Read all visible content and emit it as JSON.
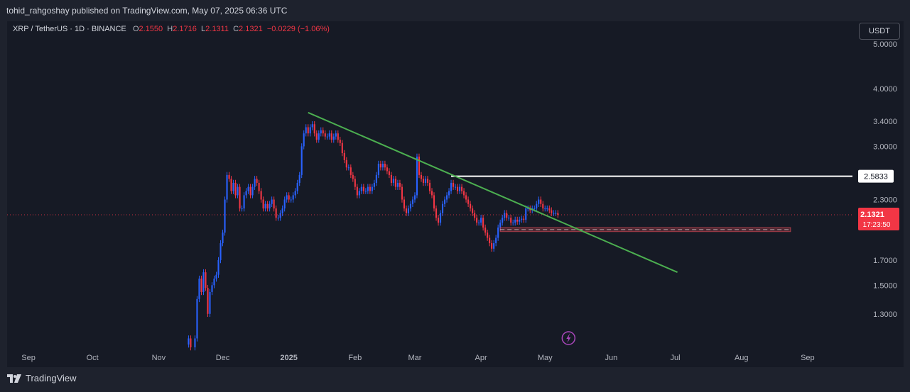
{
  "header": {
    "publisher": "tohid_rahgoshay published on TradingView.com, May 07, 2025 06:36 UTC"
  },
  "legend": {
    "symbol": "XRP / TetherUS · 1D · BINANCE",
    "o_label": "O",
    "o_value": "2.1550",
    "h_label": "H",
    "h_value": "2.1716",
    "l_label": "L",
    "l_value": "2.1311",
    "c_label": "C",
    "c_value": "2.1321",
    "change": "−0.0229 (−1.06%)"
  },
  "toolbar": {
    "currency": "USDT"
  },
  "footer": {
    "brand": "TradingView"
  },
  "colors": {
    "up": "#2962ff",
    "down": "#f23645",
    "trendline": "#4caf50",
    "level": "#ffffff",
    "zone": "#f7525f"
  },
  "chart_data": {
    "type": "candlestick",
    "symbol": "XRP / TetherUS",
    "interval": "1D",
    "exchange": "BINANCE",
    "y_scale": "log",
    "ylim": [
      1.1,
      5.6
    ],
    "xlim": [
      "2024-08-22",
      "2025-09-22"
    ],
    "yticks": [
      "5.0000",
      "4.0000",
      "3.4000",
      "3.0000",
      "2.3000",
      "1.7000",
      "1.5000",
      "1.3000"
    ],
    "xticks": [
      {
        "label": "Sep",
        "date": "2024-09-01"
      },
      {
        "label": "Oct",
        "date": "2024-10-01"
      },
      {
        "label": "Nov",
        "date": "2024-11-01"
      },
      {
        "label": "Dec",
        "date": "2024-12-01"
      },
      {
        "label": "2025",
        "date": "2025-01-01"
      },
      {
        "label": "Feb",
        "date": "2025-02-01"
      },
      {
        "label": "Mar",
        "date": "2025-03-01"
      },
      {
        "label": "Apr",
        "date": "2025-04-01"
      },
      {
        "label": "May",
        "date": "2025-05-01"
      },
      {
        "label": "Jun",
        "date": "2025-06-01"
      },
      {
        "label": "Jul",
        "date": "2025-07-01"
      },
      {
        "label": "Aug",
        "date": "2025-08-01"
      },
      {
        "label": "Sep",
        "date": "2025-09-01"
      }
    ],
    "last_price": {
      "value": 2.1321,
      "label": "2.1321",
      "countdown": "17:23:50"
    },
    "horizontal_level": {
      "value": 2.5833,
      "label": "2.5833",
      "start": "2025-03-18",
      "end": "2025-08-24"
    },
    "support_zone": {
      "top": 2.0,
      "bottom": 1.96,
      "start": "2025-04-10",
      "end": "2025-08-24"
    },
    "trendline": {
      "start": {
        "date": "2025-01-10",
        "value": 3.55
      },
      "end": {
        "date": "2025-07-02",
        "value": 1.6
      }
    },
    "closes": [
      [
        "2024-11-15",
        1.15
      ],
      [
        "2024-11-16",
        1.1
      ],
      [
        "2024-11-18",
        1.15
      ],
      [
        "2024-11-19",
        1.4
      ],
      [
        "2024-11-20",
        1.55
      ],
      [
        "2024-11-21",
        1.45
      ],
      [
        "2024-11-22",
        1.6
      ],
      [
        "2024-11-23",
        1.48
      ],
      [
        "2024-11-24",
        1.3
      ],
      [
        "2024-11-25",
        1.45
      ],
      [
        "2024-11-26",
        1.5
      ],
      [
        "2024-11-27",
        1.55
      ],
      [
        "2024-11-28",
        1.58
      ],
      [
        "2024-11-29",
        1.7
      ],
      [
        "2024-11-30",
        1.85
      ],
      [
        "2024-12-01",
        1.95
      ],
      [
        "2024-12-02",
        2.3
      ],
      [
        "2024-12-03",
        2.6
      ],
      [
        "2024-12-04",
        2.55
      ],
      [
        "2024-12-05",
        2.4
      ],
      [
        "2024-12-06",
        2.5
      ],
      [
        "2024-12-07",
        2.35
      ],
      [
        "2024-12-08",
        2.45
      ],
      [
        "2024-12-09",
        2.2
      ],
      [
        "2024-12-10",
        2.2
      ],
      [
        "2024-12-11",
        2.35
      ],
      [
        "2024-12-12",
        2.4
      ],
      [
        "2024-12-13",
        2.45
      ],
      [
        "2024-12-14",
        2.35
      ],
      [
        "2024-12-15",
        2.45
      ],
      [
        "2024-12-16",
        2.55
      ],
      [
        "2024-12-17",
        2.5
      ],
      [
        "2024-12-18",
        2.4
      ],
      [
        "2024-12-19",
        2.3
      ],
      [
        "2024-12-20",
        2.2
      ],
      [
        "2024-12-21",
        2.25
      ],
      [
        "2024-12-22",
        2.2
      ],
      [
        "2024-12-23",
        2.25
      ],
      [
        "2024-12-24",
        2.3
      ],
      [
        "2024-12-25",
        2.2
      ],
      [
        "2024-12-26",
        2.1
      ],
      [
        "2024-12-27",
        2.1
      ],
      [
        "2024-12-28",
        2.15
      ],
      [
        "2024-12-29",
        2.2
      ],
      [
        "2024-12-30",
        2.3
      ],
      [
        "2024-12-31",
        2.35
      ],
      [
        "2025-01-01",
        2.3
      ],
      [
        "2025-01-02",
        2.3
      ],
      [
        "2025-01-03",
        2.35
      ],
      [
        "2025-01-04",
        2.4
      ],
      [
        "2025-01-05",
        2.5
      ],
      [
        "2025-01-06",
        2.6
      ],
      [
        "2025-01-07",
        3.0
      ],
      [
        "2025-01-08",
        3.2
      ],
      [
        "2025-01-09",
        3.3
      ],
      [
        "2025-01-10",
        3.2
      ],
      [
        "2025-01-11",
        3.3
      ],
      [
        "2025-01-12",
        3.35
      ],
      [
        "2025-01-13",
        3.2
      ],
      [
        "2025-01-14",
        3.1
      ],
      [
        "2025-01-15",
        3.2
      ],
      [
        "2025-01-16",
        3.25
      ],
      [
        "2025-01-17",
        3.2
      ],
      [
        "2025-01-18",
        3.15
      ],
      [
        "2025-01-19",
        3.15
      ],
      [
        "2025-01-20",
        3.2
      ],
      [
        "2025-01-21",
        3.1
      ],
      [
        "2025-01-22",
        3.15
      ],
      [
        "2025-01-23",
        3.2
      ],
      [
        "2025-01-24",
        3.1
      ],
      [
        "2025-01-25",
        3.05
      ],
      [
        "2025-01-26",
        2.9
      ],
      [
        "2025-01-27",
        2.8
      ],
      [
        "2025-01-28",
        2.7
      ],
      [
        "2025-01-29",
        2.7
      ],
      [
        "2025-01-30",
        2.6
      ],
      [
        "2025-01-31",
        2.55
      ],
      [
        "2025-02-01",
        2.45
      ],
      [
        "2025-02-02",
        2.35
      ],
      [
        "2025-02-03",
        2.4
      ],
      [
        "2025-02-04",
        2.45
      ],
      [
        "2025-02-05",
        2.4
      ],
      [
        "2025-02-06",
        2.4
      ],
      [
        "2025-02-07",
        2.45
      ],
      [
        "2025-02-08",
        2.4
      ],
      [
        "2025-02-09",
        2.45
      ],
      [
        "2025-02-10",
        2.5
      ],
      [
        "2025-02-11",
        2.6
      ],
      [
        "2025-02-12",
        2.75
      ],
      [
        "2025-02-13",
        2.7
      ],
      [
        "2025-02-14",
        2.75
      ],
      [
        "2025-02-15",
        2.7
      ],
      [
        "2025-02-16",
        2.65
      ],
      [
        "2025-02-17",
        2.6
      ],
      [
        "2025-02-18",
        2.5
      ],
      [
        "2025-02-19",
        2.55
      ],
      [
        "2025-02-20",
        2.45
      ],
      [
        "2025-02-21",
        2.5
      ],
      [
        "2025-02-22",
        2.45
      ],
      [
        "2025-02-23",
        2.3
      ],
      [
        "2025-02-24",
        2.2
      ],
      [
        "2025-02-25",
        2.15
      ],
      [
        "2025-02-26",
        2.2
      ],
      [
        "2025-02-27",
        2.25
      ],
      [
        "2025-02-28",
        2.3
      ],
      [
        "2025-03-01",
        2.35
      ],
      [
        "2025-03-02",
        2.85
      ],
      [
        "2025-03-03",
        2.6
      ],
      [
        "2025-03-04",
        2.55
      ],
      [
        "2025-03-05",
        2.5
      ],
      [
        "2025-03-06",
        2.55
      ],
      [
        "2025-03-07",
        2.5
      ],
      [
        "2025-03-08",
        2.4
      ],
      [
        "2025-03-09",
        2.35
      ],
      [
        "2025-03-10",
        2.2
      ],
      [
        "2025-03-11",
        2.1
      ],
      [
        "2025-03-12",
        2.05
      ],
      [
        "2025-03-13",
        2.15
      ],
      [
        "2025-03-14",
        2.25
      ],
      [
        "2025-03-15",
        2.3
      ],
      [
        "2025-03-16",
        2.35
      ],
      [
        "2025-03-17",
        2.4
      ],
      [
        "2025-03-18",
        2.5
      ],
      [
        "2025-03-19",
        2.45
      ],
      [
        "2025-03-20",
        2.45
      ],
      [
        "2025-03-21",
        2.4
      ],
      [
        "2025-03-22",
        2.45
      ],
      [
        "2025-03-23",
        2.4
      ],
      [
        "2025-03-24",
        2.35
      ],
      [
        "2025-03-25",
        2.3
      ],
      [
        "2025-03-26",
        2.25
      ],
      [
        "2025-03-27",
        2.2
      ],
      [
        "2025-03-28",
        2.15
      ],
      [
        "2025-03-29",
        2.1
      ],
      [
        "2025-03-30",
        2.05
      ],
      [
        "2025-03-31",
        2.05
      ],
      [
        "2025-04-01",
        2.1
      ],
      [
        "2025-04-02",
        2.0
      ],
      [
        "2025-04-03",
        1.95
      ],
      [
        "2025-04-04",
        1.9
      ],
      [
        "2025-04-05",
        1.85
      ],
      [
        "2025-04-06",
        1.8
      ],
      [
        "2025-04-07",
        1.85
      ],
      [
        "2025-04-08",
        1.9
      ],
      [
        "2025-04-09",
        2.0
      ],
      [
        "2025-04-10",
        2.05
      ],
      [
        "2025-04-11",
        2.1
      ],
      [
        "2025-04-12",
        2.15
      ],
      [
        "2025-04-13",
        2.1
      ],
      [
        "2025-04-14",
        2.1
      ],
      [
        "2025-04-15",
        2.05
      ],
      [
        "2025-04-16",
        2.05
      ],
      [
        "2025-04-17",
        2.08
      ],
      [
        "2025-04-18",
        2.06
      ],
      [
        "2025-04-19",
        2.08
      ],
      [
        "2025-04-20",
        2.09
      ],
      [
        "2025-04-21",
        2.08
      ],
      [
        "2025-04-22",
        2.2
      ],
      [
        "2025-04-23",
        2.2
      ],
      [
        "2025-04-24",
        2.18
      ],
      [
        "2025-04-25",
        2.2
      ],
      [
        "2025-04-26",
        2.2
      ],
      [
        "2025-04-27",
        2.25
      ],
      [
        "2025-04-28",
        2.3
      ],
      [
        "2025-04-29",
        2.25
      ],
      [
        "2025-04-30",
        2.2
      ],
      [
        "2025-05-01",
        2.2
      ],
      [
        "2025-05-02",
        2.2
      ],
      [
        "2025-05-03",
        2.18
      ],
      [
        "2025-05-04",
        2.15
      ],
      [
        "2025-05-05",
        2.15
      ],
      [
        "2025-05-06",
        2.15
      ],
      [
        "2025-05-07",
        2.1321
      ]
    ]
  }
}
